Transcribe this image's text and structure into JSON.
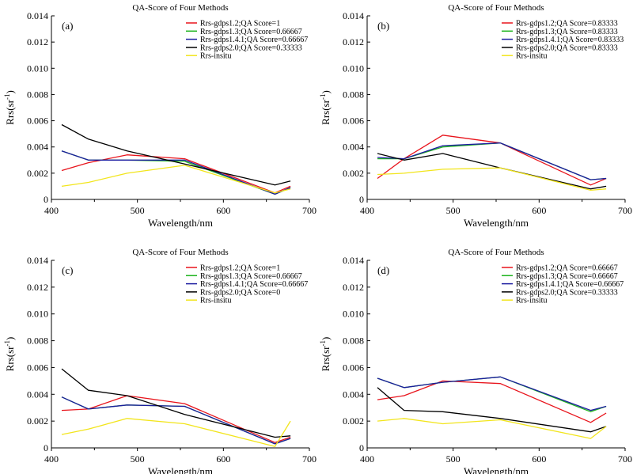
{
  "chart_data": [
    {
      "panel": "(a)",
      "type": "line",
      "title": "QA-Score of Four Methods",
      "xlabel": "Wavelength/nm",
      "ylabel": "Rrs(sr",
      "ylabel_sup": "-1",
      "ylabel_end": ")",
      "xlim": [
        400,
        700
      ],
      "ylim": [
        0,
        0.014
      ],
      "xticks": [
        "400",
        "500",
        "600",
        "700",
        "450",
        "550",
        "650"
      ],
      "xtick_values": [
        400,
        500,
        600,
        700,
        450,
        550,
        650
      ],
      "yticks": [
        "0",
        "0.002",
        "0.004",
        "0.006",
        "0.008",
        "0.010",
        "0.012",
        "0.014"
      ],
      "ytick_values": [
        0,
        0.002,
        0.004,
        0.006,
        0.008,
        0.01,
        0.012,
        0.014
      ],
      "legend_position": "top-right",
      "grid": false,
      "x": [
        412,
        443,
        488,
        555,
        660,
        678
      ],
      "series": [
        {
          "name": "Rrs-gdps1.2;QA Score=1",
          "color": "#e8141c",
          "values": [
            0.0022,
            0.0028,
            0.0034,
            0.0031,
            0.0005,
            0.001
          ]
        },
        {
          "name": "Rrs-gdps1.3;QA Score=0.66667",
          "color": "#1fb41f",
          "values": [
            0.0037,
            0.003,
            0.003,
            0.0029,
            0.0004,
            0.0009
          ]
        },
        {
          "name": "Rrs-gdps1.4.1;QA Score=0.66667",
          "color": "#1c1ca0",
          "values": [
            0.0037,
            0.003,
            0.003,
            0.003,
            0.0004,
            0.0009
          ]
        },
        {
          "name": "Rrs-gdps2.0;QA Score=0.33333",
          "color": "#000000",
          "values": [
            0.0057,
            0.0046,
            0.0037,
            0.0027,
            0.0011,
            0.0014
          ]
        },
        {
          "name": "Rrs-insitu",
          "color": "#f2e51c",
          "values": [
            0.001,
            0.0013,
            0.002,
            0.0026,
            0.0005,
            0.0008
          ]
        }
      ]
    },
    {
      "panel": "(b)",
      "type": "line",
      "title": "QA-Score of Four Methods",
      "xlabel": "Wavelength/nm",
      "ylabel": "Rrs(sr",
      "ylabel_sup": "-1",
      "ylabel_end": ")",
      "xlim": [
        400,
        700
      ],
      "ylim": [
        0,
        0.014
      ],
      "xticks": [
        "400",
        "500",
        "600",
        "700",
        "450",
        "550",
        "650"
      ],
      "xtick_values": [
        400,
        500,
        600,
        700,
        450,
        550,
        650
      ],
      "yticks": [
        "0",
        "0.002",
        "0.004",
        "0.006",
        "0.008",
        "0.010",
        "0.012",
        "0.014"
      ],
      "ytick_values": [
        0,
        0.002,
        0.004,
        0.006,
        0.008,
        0.01,
        0.012,
        0.014
      ],
      "legend_position": "top-right",
      "grid": false,
      "x": [
        412,
        443,
        488,
        555,
        660,
        678
      ],
      "series": [
        {
          "name": "Rrs-gdps1.2;QA Score=0.83333",
          "color": "#e8141c",
          "values": [
            0.0016,
            0.0031,
            0.0049,
            0.0043,
            0.0011,
            0.0016
          ]
        },
        {
          "name": "Rrs-gdps1.3;QA Score=0.83333",
          "color": "#1fb41f",
          "values": [
            0.0031,
            0.0031,
            0.004,
            0.0043,
            0.0015,
            0.0016
          ]
        },
        {
          "name": "Rrs-gdps1.4.1;QA Score=0.83333",
          "color": "#1c1ca0",
          "values": [
            0.0032,
            0.0031,
            0.0041,
            0.0043,
            0.0015,
            0.0016
          ]
        },
        {
          "name": "Rrs-gdps2.0;QA Score=0.83333",
          "color": "#000000",
          "values": [
            0.0035,
            0.003,
            0.0035,
            0.0024,
            0.0008,
            0.001
          ]
        },
        {
          "name": "Rrs-insitu",
          "color": "#f2e51c",
          "values": [
            0.0019,
            0.002,
            0.0023,
            0.0024,
            0.0007,
            0.0008
          ]
        }
      ]
    },
    {
      "panel": "(c)",
      "type": "line",
      "title": "QA-Score of Four Methods",
      "xlabel": "Wavelength/nm",
      "ylabel": "Rrs(sr",
      "ylabel_sup": "-1",
      "ylabel_end": ")",
      "xlim": [
        400,
        700
      ],
      "ylim": [
        0,
        0.014
      ],
      "xticks": [
        "400",
        "500",
        "600",
        "700",
        "450",
        "550",
        "650"
      ],
      "xtick_values": [
        400,
        500,
        600,
        700,
        450,
        550,
        650
      ],
      "yticks": [
        "0",
        "0.002",
        "0.004",
        "0.006",
        "0.008",
        "0.010",
        "0.012",
        "0.014"
      ],
      "ytick_values": [
        0,
        0.002,
        0.004,
        0.006,
        0.008,
        0.01,
        0.012,
        0.014
      ],
      "legend_position": "top-right",
      "grid": false,
      "x": [
        412,
        443,
        488,
        555,
        660,
        678
      ],
      "series": [
        {
          "name": "Rrs-gdps1.2;QA Score=1",
          "color": "#e8141c",
          "values": [
            0.0028,
            0.0029,
            0.0039,
            0.0033,
            0.0004,
            0.0008
          ]
        },
        {
          "name": "Rrs-gdps1.3;QA Score=0.66667",
          "color": "#1fb41f",
          "values": [
            0.0038,
            0.0029,
            0.0032,
            0.0031,
            0.0003,
            0.0007
          ]
        },
        {
          "name": "Rrs-gdps1.4.1;QA Score=0.66667",
          "color": "#1c1ca0",
          "values": [
            0.0038,
            0.0029,
            0.0032,
            0.0031,
            0.0003,
            0.0007
          ]
        },
        {
          "name": "Rrs-gdps2.0;QA Score=0",
          "color": "#000000",
          "values": [
            0.0059,
            0.0043,
            0.0039,
            0.0025,
            0.0008,
            0.0009
          ]
        },
        {
          "name": "Rrs-insitu",
          "color": "#f2e51c",
          "values": [
            0.001,
            0.0014,
            0.0022,
            0.0018,
            0.0001,
            0.002
          ]
        }
      ]
    },
    {
      "panel": "(d)",
      "type": "line",
      "title": "QA-Score of Four Methods",
      "xlabel": "Wavelength/nm",
      "ylabel": "Rrs(sr",
      "ylabel_sup": "-1",
      "ylabel_end": ")",
      "xlim": [
        400,
        700
      ],
      "ylim": [
        0,
        0.014
      ],
      "xticks": [
        "400",
        "500",
        "600",
        "700",
        "450",
        "550",
        "650"
      ],
      "xtick_values": [
        400,
        500,
        600,
        700,
        450,
        550,
        650
      ],
      "yticks": [
        "0",
        "0.002",
        "0.004",
        "0.006",
        "0.008",
        "0.010",
        "0.012",
        "0.014"
      ],
      "ytick_values": [
        0,
        0.002,
        0.004,
        0.006,
        0.008,
        0.01,
        0.012,
        0.014
      ],
      "legend_position": "top-right",
      "grid": false,
      "x": [
        412,
        443,
        488,
        555,
        660,
        678
      ],
      "series": [
        {
          "name": "Rrs-gdps1.2;QA Score=0.66667",
          "color": "#e8141c",
          "values": [
            0.0036,
            0.0039,
            0.005,
            0.0048,
            0.0019,
            0.0026
          ]
        },
        {
          "name": "Rrs-gdps1.3;QA Score=0.66667",
          "color": "#1fb41f",
          "values": [
            0.0052,
            0.0045,
            0.0049,
            0.0053,
            0.0027,
            0.0031
          ]
        },
        {
          "name": "Rrs-gdps1.4.1;QA Score=0.66667",
          "color": "#1c1ca0",
          "values": [
            0.0052,
            0.0045,
            0.0049,
            0.0053,
            0.0028,
            0.0031
          ]
        },
        {
          "name": "Rrs-gdps2.0;QA Score=0.33333",
          "color": "#000000",
          "values": [
            0.0045,
            0.0028,
            0.0027,
            0.0022,
            0.0012,
            0.0016
          ]
        },
        {
          "name": "Rrs-insitu",
          "color": "#f2e51c",
          "values": [
            0.002,
            0.0022,
            0.0018,
            0.0021,
            0.0007,
            0.0016
          ]
        }
      ]
    }
  ]
}
